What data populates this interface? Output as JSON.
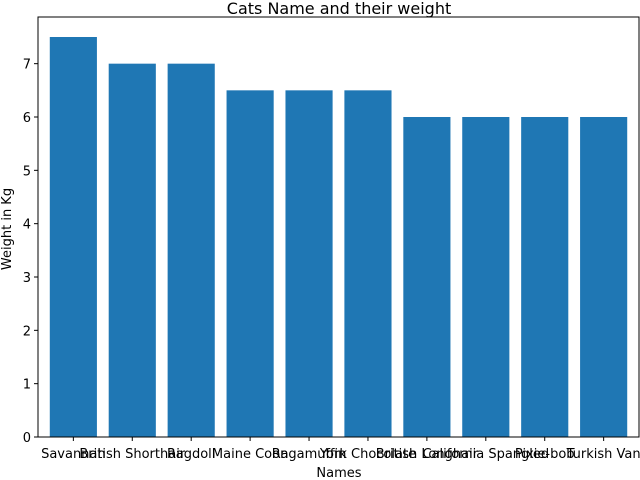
{
  "chart_data": {
    "type": "bar",
    "title": "Cats Name and their weight",
    "xlabel": "Names",
    "ylabel": "Weight in Kg",
    "categories": [
      "Savannah",
      "British Shorthair",
      "Ragdoll",
      "Maine Coon",
      "Ragamuffin",
      "York Chocolate",
      "British Longhair",
      "California Spangled",
      "Pixie-bob",
      "Turkish Van"
    ],
    "values": [
      7.5,
      7,
      7,
      6.5,
      6.5,
      6.5,
      6,
      6,
      6,
      6
    ],
    "ylim": [
      0,
      7.875
    ],
    "yticks": [
      "0",
      "1",
      "2",
      "3",
      "4",
      "5",
      "6",
      "7"
    ],
    "bar_color": "#1f77b4",
    "grid": false,
    "legend": "none"
  }
}
